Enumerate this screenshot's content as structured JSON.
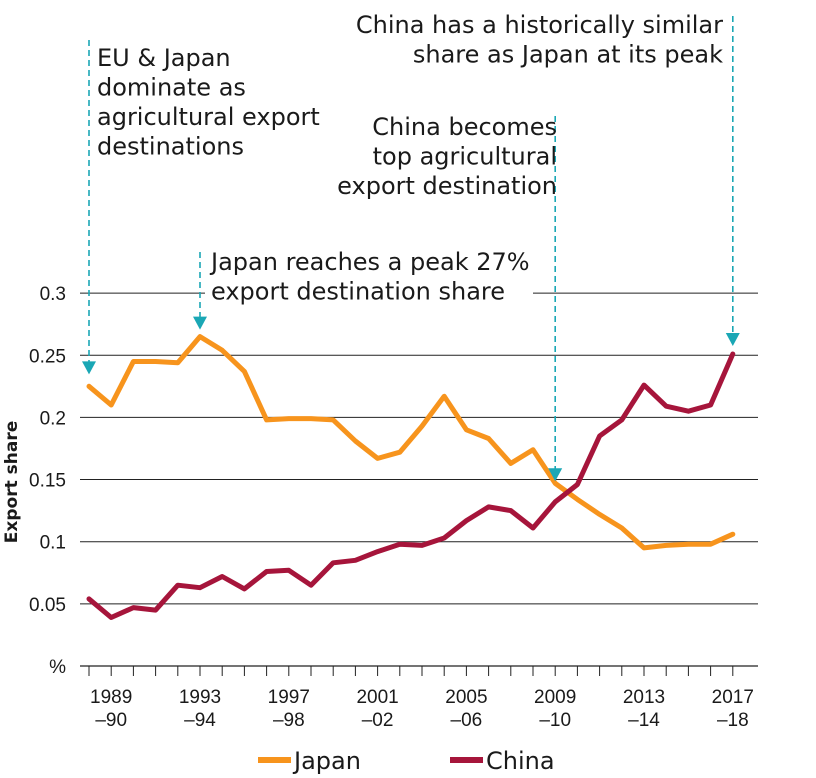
{
  "chart_data": {
    "type": "line",
    "ylabel": "Export share",
    "yunit": "%",
    "ylim": [
      0,
      0.3
    ],
    "yticks": [
      {
        "value": 0.05,
        "label": "0.05"
      },
      {
        "value": 0.1,
        "label": "0.1"
      },
      {
        "value": 0.15,
        "label": "0.15"
      },
      {
        "value": 0.2,
        "label": "0.2"
      },
      {
        "value": 0.25,
        "label": "0.25"
      },
      {
        "value": 0.3,
        "label": "0.3"
      }
    ],
    "x": [
      "1988-89",
      "1989-90",
      "1990-91",
      "1991-92",
      "1992-93",
      "1993-94",
      "1994-95",
      "1995-96",
      "1996-97",
      "1997-98",
      "1998-99",
      "1999-00",
      "2000-01",
      "2001-02",
      "2002-03",
      "2003-04",
      "2004-05",
      "2005-06",
      "2006-07",
      "2007-08",
      "2008-09",
      "2009-10",
      "2010-11",
      "2011-12",
      "2012-13",
      "2013-14",
      "2014-15",
      "2015-16",
      "2016-17",
      "2017-18"
    ],
    "xticks": [
      {
        "x": "1989-90",
        "line1": "1989",
        "line2": "–90"
      },
      {
        "x": "1993-94",
        "line1": "1993",
        "line2": "–94"
      },
      {
        "x": "1997-98",
        "line1": "1997",
        "line2": "–98"
      },
      {
        "x": "2001-02",
        "line1": "2001",
        "line2": "–02"
      },
      {
        "x": "2005-06",
        "line1": "2005",
        "line2": "–06"
      },
      {
        "x": "2009-10",
        "line1": "2009",
        "line2": "–10"
      },
      {
        "x": "2013-14",
        "line1": "2013",
        "line2": "–14"
      },
      {
        "x": "2017-18",
        "line1": "2017",
        "line2": "–18"
      }
    ],
    "grid": true,
    "legend_position": "bottom",
    "series": [
      {
        "name": "Japan",
        "color": "#f7941d",
        "values": [
          0.225,
          0.21,
          0.245,
          0.245,
          0.244,
          0.265,
          0.254,
          0.237,
          0.198,
          0.199,
          0.199,
          0.198,
          0.181,
          0.167,
          0.172,
          0.193,
          0.217,
          0.19,
          0.183,
          0.163,
          0.174,
          0.147,
          0.134,
          0.122,
          0.111,
          0.095,
          0.097,
          0.098,
          0.098,
          0.106
        ]
      },
      {
        "name": "China",
        "color": "#a6153b",
        "values": [
          0.054,
          0.039,
          0.047,
          0.045,
          0.065,
          0.063,
          0.072,
          0.062,
          0.076,
          0.077,
          0.065,
          0.083,
          0.085,
          0.092,
          0.098,
          0.097,
          0.103,
          0.117,
          0.128,
          0.125,
          0.111,
          0.132,
          0.146,
          0.185,
          0.198,
          0.226,
          0.209,
          0.205,
          0.21,
          0.251
        ]
      }
    ],
    "annotations": [
      {
        "x": "1988-89",
        "lines": [
          "EU & Japan",
          "dominate as",
          "agricultural export",
          "destinations"
        ]
      },
      {
        "x": "1993-94",
        "lines": [
          "Japan reaches a peak 27%",
          "export destination share"
        ]
      },
      {
        "x": "2009-10",
        "lines": [
          "China becomes",
          "top agricultural",
          "export destination"
        ]
      },
      {
        "x": "2017-18",
        "lines": [
          "China has a historically similar",
          "share as Japan at its peak"
        ]
      }
    ]
  }
}
